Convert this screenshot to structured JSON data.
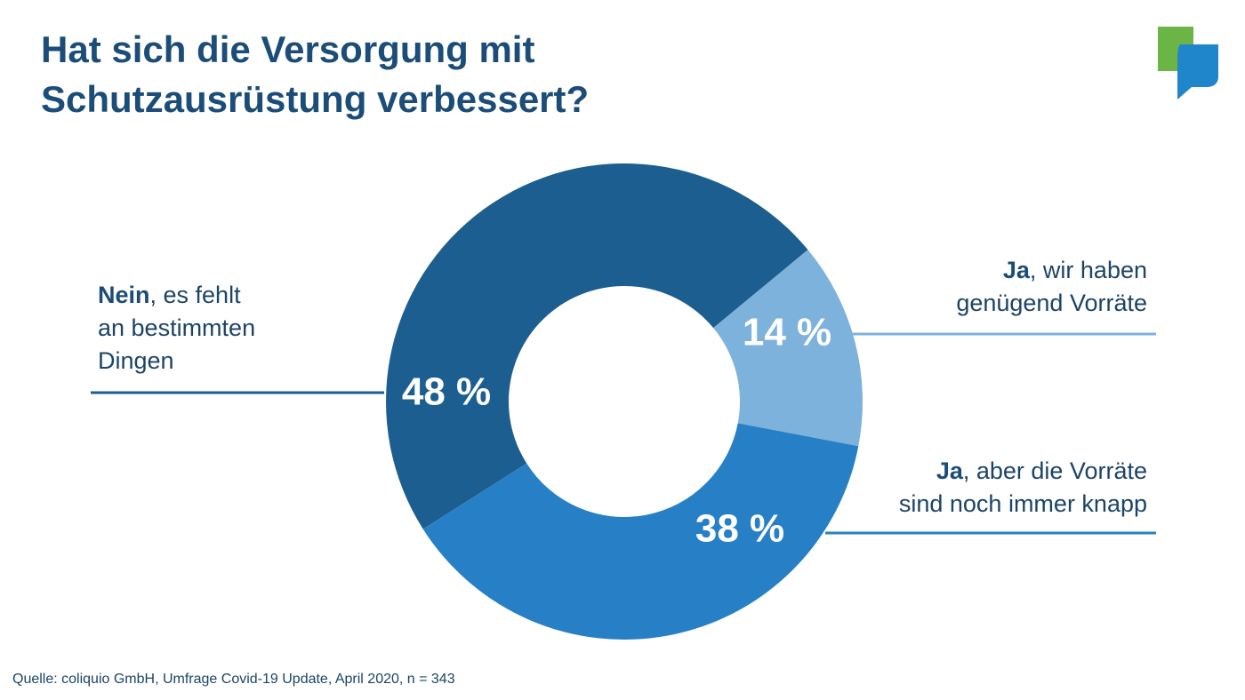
{
  "title_lines": [
    "Hat sich die Versorgung mit",
    "Schutzausrüstung verbessert?"
  ],
  "chart_data": {
    "type": "pie",
    "variant": "donut",
    "title": "Hat sich die Versorgung mit Schutzausrüstung verbessert?",
    "slices": [
      {
        "value": 48,
        "value_label": "48 %",
        "label_bold": "Nein",
        "label_rest": ", es fehlt",
        "label_lines": [
          "an bestimmten",
          "Dingen"
        ],
        "color": "#1c5e8f"
      },
      {
        "value": 14,
        "value_label": "14 %",
        "label_bold": "Ja",
        "label_rest": ", wir haben",
        "label_lines": [
          "genügend Vorräte"
        ],
        "color": "#7db2dc"
      },
      {
        "value": 38,
        "value_label": "38 %",
        "label_bold": "Ja",
        "label_rest": ", aber die Vorräte",
        "label_lines": [
          "sind noch immer knapp"
        ],
        "color": "#2780c5"
      }
    ],
    "legend": "none"
  },
  "source": "Quelle: coliquio GmbH, Umfrage Covid-19 Update, April 2020, n = 343",
  "logo": {
    "icon": "speech-bubbles-logo",
    "colors": [
      "#6ab545",
      "#1f86cc"
    ]
  }
}
